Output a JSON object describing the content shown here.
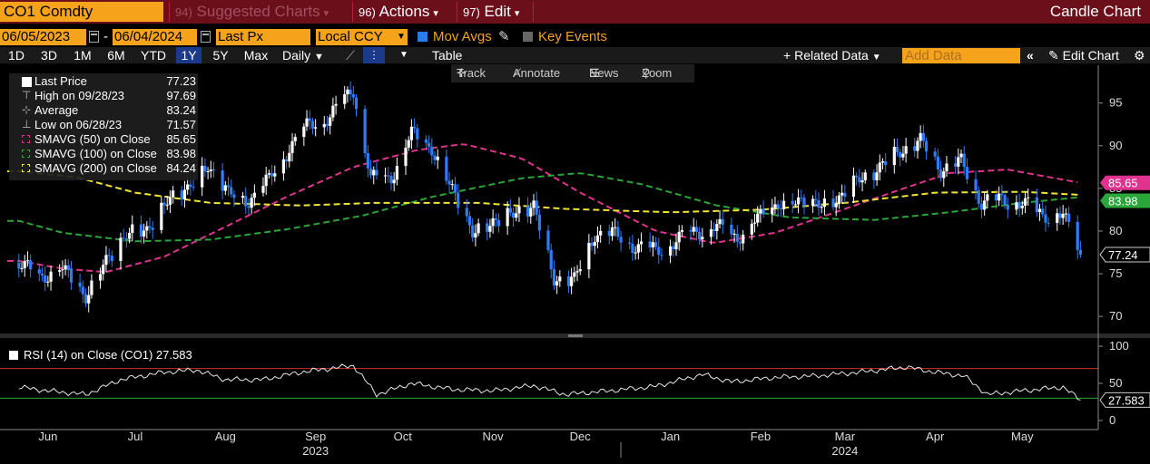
{
  "header": {
    "ticker": "CO1 Comdty",
    "menu_suggested_num": "94)",
    "menu_suggested": "Suggested Charts",
    "menu_actions_num": "96)",
    "menu_actions": "Actions",
    "menu_edit_num": "97)",
    "menu_edit": "Edit",
    "chart_title": "Candle Chart"
  },
  "settings": {
    "start_date": "06/05/2023",
    "end_date": "06/04/2024",
    "field": "Last Px",
    "currency": "Local CCY",
    "mov_avgs_label": "Mov Avgs",
    "key_events_label": "Key Events"
  },
  "timeframes": [
    "1D",
    "3D",
    "1M",
    "6M",
    "YTD",
    "1Y",
    "5Y",
    "Max"
  ],
  "selected_timeframe": "1Y",
  "periodicity": "Daily",
  "table_label": "Table",
  "related_data_label": "Related Data",
  "add_data_placeholder": "Add Data",
  "edit_chart_label": "Edit Chart",
  "toolbar": {
    "track": "Track",
    "annotate": "Annotate",
    "news": "News",
    "zoom": "Zoom"
  },
  "legend": {
    "last_price_label": "Last Price",
    "last_price": "77.23",
    "high_label": "High on 09/28/23",
    "high": "97.69",
    "average_label": "Average",
    "average": "83.24",
    "low_label": "Low on 06/28/23",
    "low": "71.57",
    "sma50_label": "SMAVG (50)  on Close",
    "sma50": "85.65",
    "sma100_label": "SMAVG (100)  on Close",
    "sma100": "83.98",
    "sma200_label": "SMAVG (200)  on Close",
    "sma200": "84.24"
  },
  "rsi_label": "RSI (14)  on Close (CO1) 27.583",
  "colors": {
    "up": "#ffffff",
    "down": "#2f7cf6",
    "sma50": "#e0338f",
    "sma100": "#2aa63a",
    "sma200": "#f2e533",
    "rsi": "#e8e8e8",
    "rsi_upper": "#d0302a",
    "rsi_lower": "#2aa63a"
  },
  "chart_data": [
    {
      "type": "candlestick",
      "title": "Candle Chart",
      "ylim": [
        68,
        99
      ],
      "yticks": [
        70,
        75,
        80,
        85,
        90,
        95
      ],
      "x_month_labels": [
        "Jun",
        "Jul",
        "Aug",
        "Sep",
        "Oct",
        "Nov",
        "Dec",
        "Jan",
        "Feb",
        "Mar",
        "Apr",
        "May"
      ],
      "x_year_labels": [
        "2023",
        "2024"
      ],
      "price_anchors": [
        [
          "2023-06-05",
          76.3
        ],
        [
          "2023-06-12",
          74.5
        ],
        [
          "2023-06-19",
          75.8
        ],
        [
          "2023-06-28",
          72.4
        ],
        [
          "2023-07-05",
          76.5
        ],
        [
          "2023-07-12",
          79.6
        ],
        [
          "2023-07-19",
          80.2
        ],
        [
          "2023-07-26",
          83.4
        ],
        [
          "2023-08-02",
          85.1
        ],
        [
          "2023-08-09",
          87.5
        ],
        [
          "2023-08-16",
          84.5
        ],
        [
          "2023-08-23",
          83.5
        ],
        [
          "2023-08-30",
          86.0
        ],
        [
          "2023-09-06",
          89.8
        ],
        [
          "2023-09-13",
          92.5
        ],
        [
          "2023-09-20",
          93.4
        ],
        [
          "2023-09-28",
          96.7
        ],
        [
          "2023-10-04",
          86.0
        ],
        [
          "2023-10-11",
          86.3
        ],
        [
          "2023-10-18",
          91.5
        ],
        [
          "2023-10-25",
          89.5
        ],
        [
          "2023-11-01",
          85.0
        ],
        [
          "2023-11-08",
          79.6
        ],
        [
          "2023-11-15",
          81.2
        ],
        [
          "2023-11-22",
          81.9
        ],
        [
          "2023-11-29",
          83.1
        ],
        [
          "2023-12-06",
          74.3
        ],
        [
          "2023-12-13",
          74.3
        ],
        [
          "2023-12-20",
          79.7
        ],
        [
          "2023-12-27",
          79.5
        ],
        [
          "2024-01-03",
          78.3
        ],
        [
          "2024-01-10",
          77.6
        ],
        [
          "2024-01-17",
          78.9
        ],
        [
          "2024-01-24",
          80.0
        ],
        [
          "2024-01-31",
          80.5
        ],
        [
          "2024-02-07",
          79.2
        ],
        [
          "2024-02-14",
          81.6
        ],
        [
          "2024-02-21",
          83.0
        ],
        [
          "2024-02-28",
          83.7
        ],
        [
          "2024-03-06",
          82.9
        ],
        [
          "2024-03-13",
          84.0
        ],
        [
          "2024-03-20",
          86.0
        ],
        [
          "2024-03-27",
          87.5
        ],
        [
          "2024-04-03",
          89.4
        ],
        [
          "2024-04-10",
          90.5
        ],
        [
          "2024-04-17",
          87.3
        ],
        [
          "2024-04-24",
          88.0
        ],
        [
          "2024-05-01",
          83.4
        ],
        [
          "2024-05-08",
          83.6
        ],
        [
          "2024-05-15",
          83.3
        ],
        [
          "2024-05-22",
          81.9
        ],
        [
          "2024-05-29",
          81.9
        ],
        [
          "2024-06-04",
          77.23
        ]
      ],
      "series": [
        {
          "name": "SMAVG (50)",
          "last": 85.65,
          "points": [
            [
              "2023-06-05",
              76.5
            ],
            [
              "2023-06-20",
              75.6
            ],
            [
              "2023-07-05",
              75.2
            ],
            [
              "2023-07-25",
              77.0
            ],
            [
              "2023-08-15",
              80.5
            ],
            [
              "2023-09-05",
              84.0
            ],
            [
              "2023-09-28",
              87.5
            ],
            [
              "2023-10-20",
              89.5
            ],
            [
              "2023-11-05",
              90.2
            ],
            [
              "2023-11-25",
              88.5
            ],
            [
              "2023-12-15",
              84.5
            ],
            [
              "2024-01-10",
              80.0
            ],
            [
              "2024-01-30",
              78.6
            ],
            [
              "2024-02-20",
              79.8
            ],
            [
              "2024-03-10",
              82.0
            ],
            [
              "2024-03-31",
              84.5
            ],
            [
              "2024-04-20",
              86.8
            ],
            [
              "2024-05-10",
              87.2
            ],
            [
              "2024-06-04",
              85.65
            ]
          ]
        },
        {
          "name": "SMAVG (100)",
          "last": 83.98,
          "points": [
            [
              "2023-06-05",
              81.2
            ],
            [
              "2023-06-20",
              79.8
            ],
            [
              "2023-07-15",
              78.8
            ],
            [
              "2023-08-10",
              79.0
            ],
            [
              "2023-09-05",
              80.2
            ],
            [
              "2023-10-01",
              81.8
            ],
            [
              "2023-10-25",
              84.0
            ],
            [
              "2023-11-25",
              86.2
            ],
            [
              "2023-12-15",
              86.8
            ],
            [
              "2024-01-05",
              85.5
            ],
            [
              "2024-01-31",
              83.0
            ],
            [
              "2024-02-25",
              81.6
            ],
            [
              "2024-03-25",
              81.3
            ],
            [
              "2024-04-20",
              82.2
            ],
            [
              "2024-05-15",
              83.3
            ],
            [
              "2024-06-04",
              83.98
            ]
          ]
        },
        {
          "name": "SMAVG (200)",
          "last": 84.24,
          "points": [
            [
              "2023-06-05",
              87.0
            ],
            [
              "2023-06-25",
              86.3
            ],
            [
              "2023-07-15",
              84.5
            ],
            [
              "2023-08-10",
              83.3
            ],
            [
              "2023-09-10",
              83.0
            ],
            [
              "2023-10-05",
              83.3
            ],
            [
              "2023-11-10",
              83.3
            ],
            [
              "2023-12-10",
              82.6
            ],
            [
              "2024-01-15",
              82.2
            ],
            [
              "2024-02-15",
              82.5
            ],
            [
              "2024-03-15",
              83.3
            ],
            [
              "2024-04-15",
              84.5
            ],
            [
              "2024-05-15",
              84.6
            ],
            [
              "2024-06-04",
              84.24
            ]
          ]
        }
      ]
    },
    {
      "type": "line",
      "title": "RSI (14)  on Close (CO1)",
      "ylim": [
        0,
        100
      ],
      "yticks": [
        0,
        50,
        100
      ],
      "upper_line": 70,
      "lower_line": 30,
      "last": 27.583,
      "points": [
        [
          "2023-06-05",
          45
        ],
        [
          "2023-06-15",
          40
        ],
        [
          "2023-06-28",
          35
        ],
        [
          "2023-07-10",
          55
        ],
        [
          "2023-07-25",
          65
        ],
        [
          "2023-08-05",
          68
        ],
        [
          "2023-08-15",
          55
        ],
        [
          "2023-08-28",
          55
        ],
        [
          "2023-09-10",
          65
        ],
        [
          "2023-09-28",
          74
        ],
        [
          "2023-10-06",
          35
        ],
        [
          "2023-10-18",
          50
        ],
        [
          "2023-11-01",
          42
        ],
        [
          "2023-11-15",
          40
        ],
        [
          "2023-11-29",
          47
        ],
        [
          "2023-12-10",
          35
        ],
        [
          "2023-12-25",
          40
        ],
        [
          "2024-01-10",
          46
        ],
        [
          "2024-01-26",
          62
        ],
        [
          "2024-02-05",
          52
        ],
        [
          "2024-02-20",
          58
        ],
        [
          "2024-03-05",
          60
        ],
        [
          "2024-03-20",
          65
        ],
        [
          "2024-04-05",
          72
        ],
        [
          "2024-04-15",
          65
        ],
        [
          "2024-04-25",
          60
        ],
        [
          "2024-05-03",
          35
        ],
        [
          "2024-05-15",
          40
        ],
        [
          "2024-05-29",
          45
        ],
        [
          "2024-06-04",
          27.583
        ]
      ]
    }
  ]
}
